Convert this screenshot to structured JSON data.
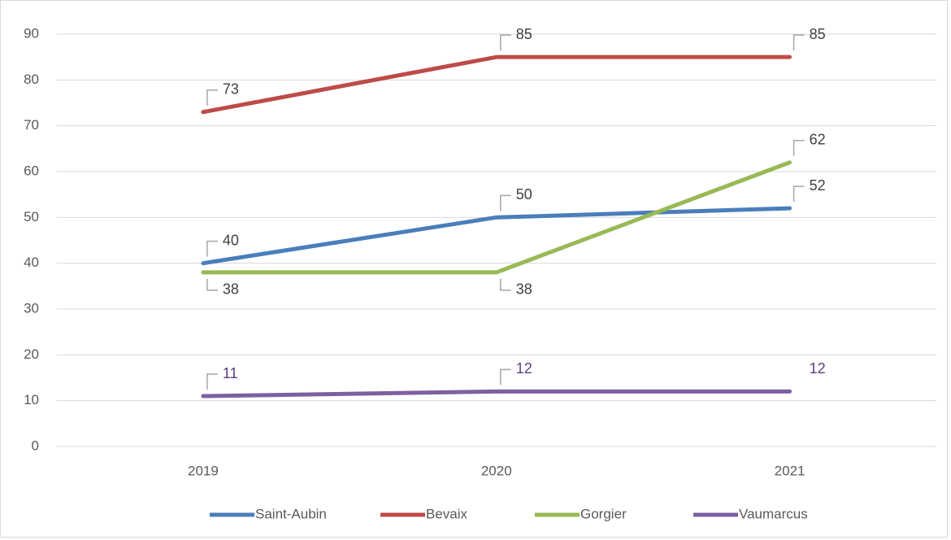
{
  "chart_data": {
    "type": "line",
    "categories": [
      "2019",
      "2020",
      "2021"
    ],
    "series": [
      {
        "name": "Saint-Aubin",
        "color": "#4a7ebb",
        "values": [
          40,
          50,
          52
        ]
      },
      {
        "name": "Bevaix",
        "color": "#be4b48",
        "values": [
          73,
          85,
          85
        ]
      },
      {
        "name": "Gorgier",
        "color": "#98b954",
        "values": [
          38,
          38,
          62
        ]
      },
      {
        "name": "Vaumarcus",
        "color": "#7d60a0",
        "values": [
          11,
          12,
          12
        ]
      }
    ],
    "ylim": [
      0,
      90
    ],
    "yticks": [
      0,
      10,
      20,
      30,
      40,
      50,
      60,
      70,
      80,
      90
    ],
    "grid": true,
    "legend": "bottom"
  }
}
